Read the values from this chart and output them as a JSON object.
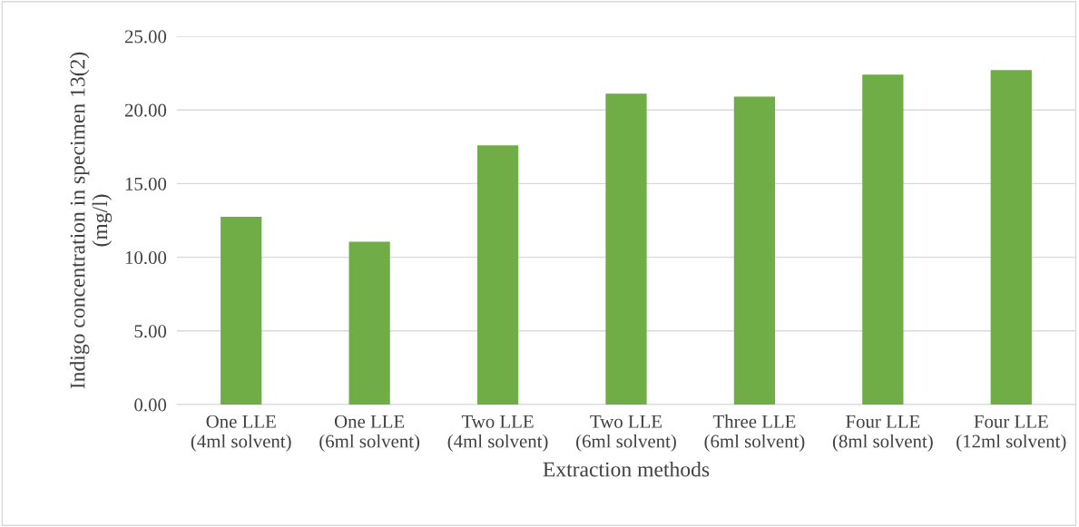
{
  "chart_data": {
    "type": "bar",
    "xlabel": "Extraction methods",
    "ylabel": "Indigo concentration in specimen 13(2)\n(mg/l)",
    "categories": [
      "One LLE\n(4ml solvent)",
      "One LLE\n(6ml solvent)",
      "Two LLE\n(4ml solvent)",
      "Two LLE\n(6ml solvent)",
      "Three LLE\n(6ml solvent)",
      "Four LLE\n(8ml solvent)",
      "Four LLE\n(12ml solvent)"
    ],
    "values": [
      12.75,
      11.05,
      17.6,
      21.1,
      20.9,
      22.4,
      22.7
    ],
    "color": "#70ad47",
    "ylim": [
      0,
      25
    ],
    "yticks": [
      {
        "value": 0,
        "label": "0.00"
      },
      {
        "value": 5,
        "label": "5.00"
      },
      {
        "value": 10,
        "label": "10.00"
      },
      {
        "value": 15,
        "label": "15.00"
      },
      {
        "value": 20,
        "label": "20.00"
      },
      {
        "value": 25,
        "label": "25.00"
      }
    ],
    "grid": "y",
    "legend": false
  }
}
